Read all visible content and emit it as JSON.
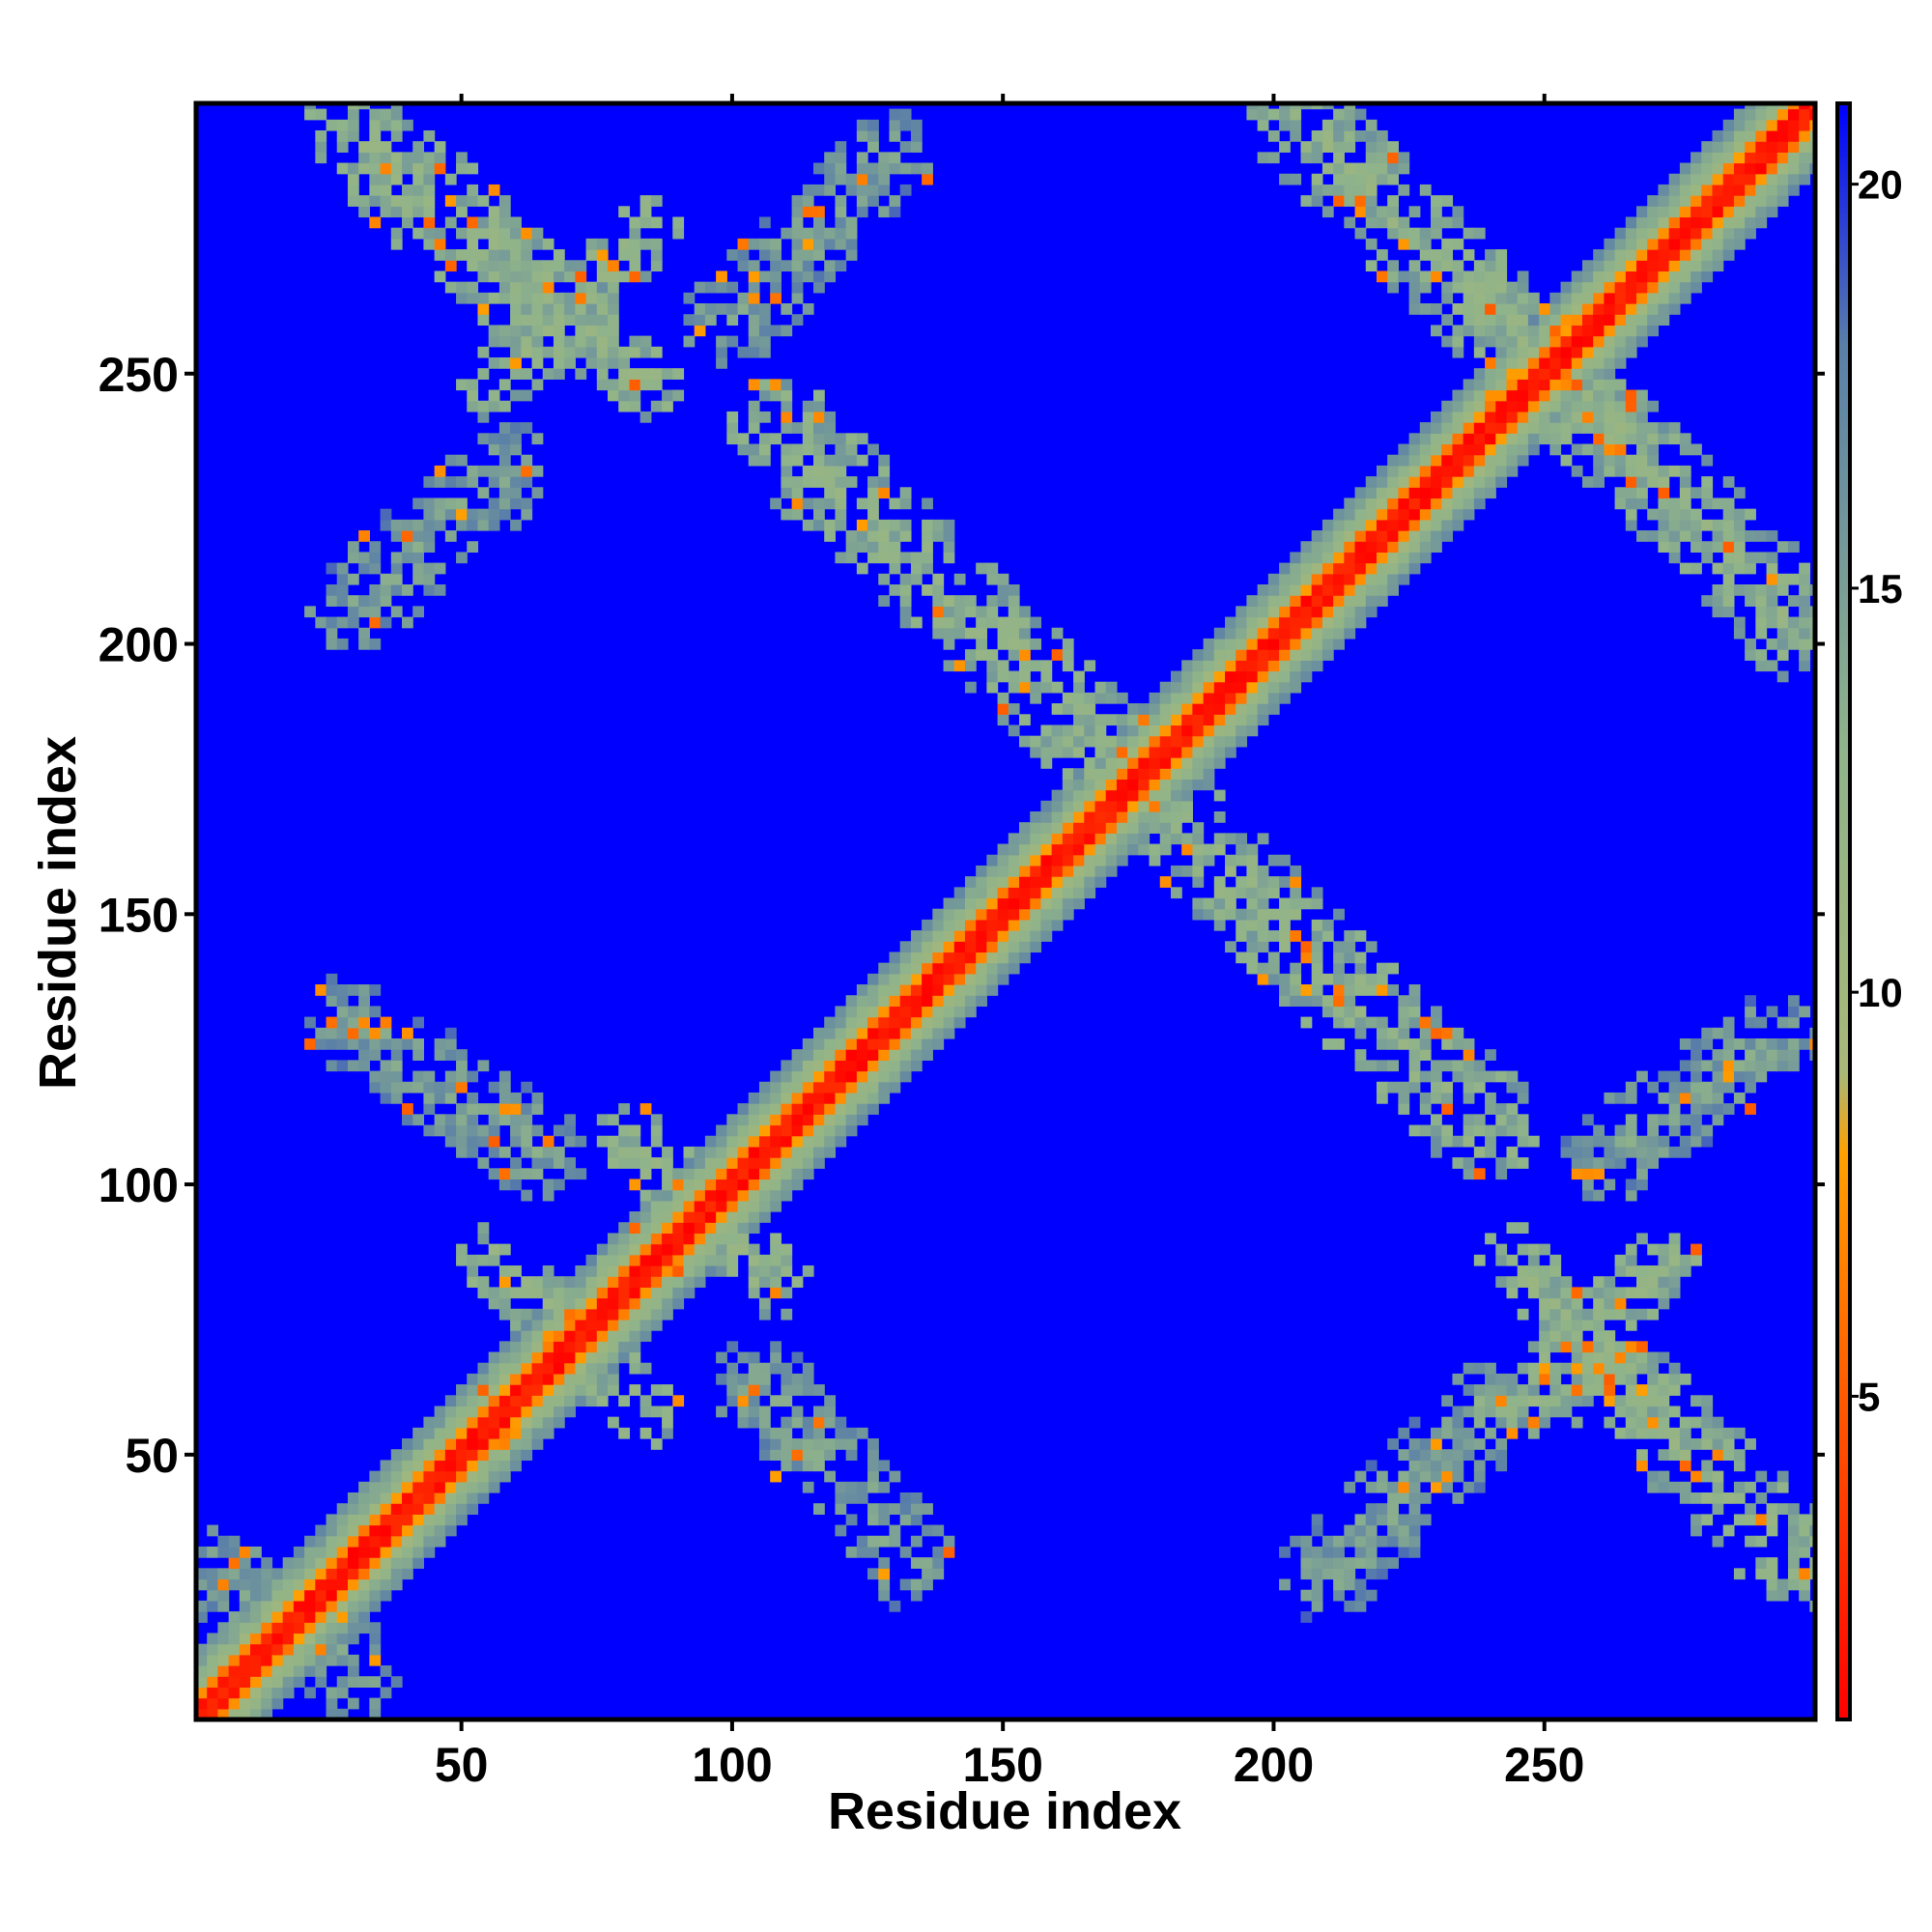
{
  "chart_data": {
    "type": "heatmap",
    "title": "",
    "xlabel": "Residue index",
    "ylabel": "Residue index",
    "xlim": [
      1,
      300
    ],
    "ylim": [
      1,
      300
    ],
    "x_ticks": [
      50,
      100,
      150,
      200,
      250
    ],
    "y_ticks": [
      50,
      100,
      150,
      200,
      250
    ],
    "colorbar": {
      "range": [
        1,
        21
      ],
      "ticks": [
        5,
        10,
        15,
        20
      ],
      "stops": [
        {
          "value": 1,
          "color": "#ff0000"
        },
        {
          "value": 5,
          "color": "#ff5a00"
        },
        {
          "value": 8,
          "color": "#ffa000"
        },
        {
          "value": 9,
          "color": "#a8b878"
        },
        {
          "value": 13,
          "color": "#8fb38a"
        },
        {
          "value": 18,
          "color": "#5a7fa8"
        },
        {
          "value": 21,
          "color": "#0000ff"
        }
      ]
    },
    "background_value": 21,
    "background_color": "#0000ff",
    "features": [
      {
        "name": "main-diagonal",
        "from": [
          1,
          1
        ],
        "to": [
          300,
          300
        ]
      },
      {
        "name": "antiparallel-band-upper-left",
        "from": [
          30,
          295
        ],
        "to": [
          70,
          258
        ]
      },
      {
        "name": "cross-upper-left",
        "center": [
          70,
          262
        ]
      },
      {
        "name": "patch-upper-left-a",
        "from": [
          100,
          260
        ],
        "to": [
          128,
          290
        ]
      },
      {
        "name": "patch-upper-left-b",
        "from": [
          30,
          207
        ],
        "to": [
          58,
          232
        ]
      },
      {
        "name": "antiparallel-band-center",
        "from": [
          108,
          240
        ],
        "to": [
          240,
          110
        ]
      },
      {
        "name": "cross-upper-right",
        "center": [
          252,
          252
        ]
      },
      {
        "name": "antiparallel-band-upper-right",
        "from": [
          205,
          297
        ],
        "to": [
          297,
          203
        ]
      },
      {
        "name": "patch-left-middle",
        "from": [
          30,
          130
        ],
        "to": [
          65,
          105
        ]
      },
      {
        "name": "cross-lower-middle",
        "center": [
          95,
          95
        ]
      },
      {
        "name": "cross-lower-left",
        "center": [
          70,
          72
        ]
      },
      {
        "name": "patch-lower-middle",
        "from": [
          105,
          63
        ],
        "to": [
          133,
          30
        ]
      },
      {
        "name": "patch-lower-right-a",
        "from": [
          210,
          28
        ],
        "to": [
          240,
          58
        ]
      },
      {
        "name": "patch-lower-right-b",
        "from": [
          262,
          105
        ],
        "to": [
          292,
          127
        ]
      },
      {
        "name": "cross-lower-right",
        "center": [
          258,
          72
        ]
      },
      {
        "name": "antiparallel-band-lower-right",
        "from": [
          258,
          68
        ],
        "to": [
          297,
          30
        ]
      },
      {
        "name": "patch-bottom-left",
        "from": [
          6,
          28
        ],
        "to": [
          30,
          10
        ]
      }
    ]
  }
}
